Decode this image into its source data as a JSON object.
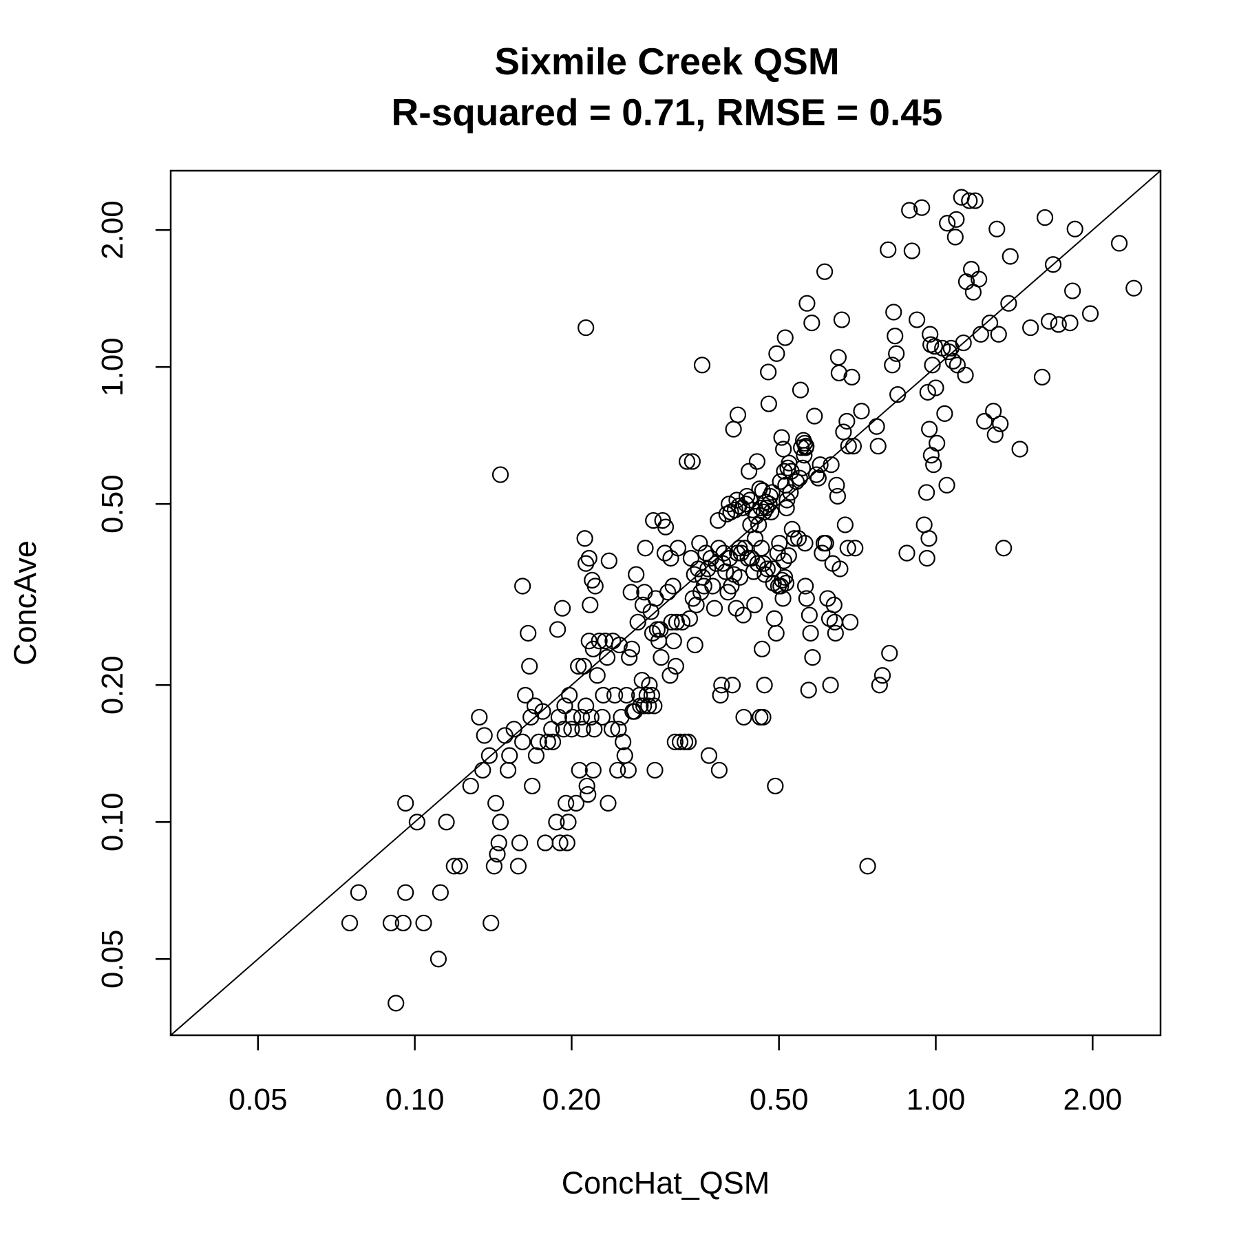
{
  "chart_data": {
    "type": "scatter",
    "title": "Sixmile Creek QSM",
    "subtitle": "R-squared = 0.71, RMSE = 0.45",
    "xlabel": "ConcHat_QSM",
    "ylabel": "ConcAve",
    "x_scale": "log",
    "y_scale": "log",
    "xlim": [
      0.034,
      2.7
    ],
    "ylim": [
      0.034,
      2.7
    ],
    "x_ticks": [
      "0.05",
      "0.10",
      "0.20",
      "0.50",
      "1.00",
      "2.00"
    ],
    "y_ticks": [
      "0.05",
      "0.10",
      "0.20",
      "0.50",
      "1.00",
      "2.00"
    ],
    "grid": false,
    "reference_line": "1:1",
    "marker": "open-circle",
    "points": [
      [
        0.075,
        0.06
      ],
      [
        0.078,
        0.07
      ],
      [
        0.09,
        0.06
      ],
      [
        0.095,
        0.06
      ],
      [
        0.096,
        0.07
      ],
      [
        0.096,
        0.11
      ],
      [
        0.092,
        0.04
      ],
      [
        0.101,
        0.1
      ],
      [
        0.104,
        0.06
      ],
      [
        0.111,
        0.05
      ],
      [
        0.112,
        0.07
      ],
      [
        0.115,
        0.1
      ],
      [
        0.119,
        0.08
      ],
      [
        0.122,
        0.08
      ],
      [
        0.128,
        0.12
      ],
      [
        0.133,
        0.17
      ],
      [
        0.135,
        0.13
      ],
      [
        0.136,
        0.155
      ],
      [
        0.139,
        0.14
      ],
      [
        0.14,
        0.06
      ],
      [
        0.142,
        0.08
      ],
      [
        0.143,
        0.11
      ],
      [
        0.144,
        0.085
      ],
      [
        0.145,
        0.09
      ],
      [
        0.146,
        0.1
      ],
      [
        0.146,
        0.58
      ],
      [
        0.149,
        0.155
      ],
      [
        0.151,
        0.13
      ],
      [
        0.152,
        0.14
      ],
      [
        0.155,
        0.16
      ],
      [
        0.158,
        0.08
      ],
      [
        0.159,
        0.09
      ],
      [
        0.161,
        0.15
      ],
      [
        0.161,
        0.33
      ],
      [
        0.163,
        0.19
      ],
      [
        0.165,
        0.26
      ],
      [
        0.166,
        0.22
      ],
      [
        0.167,
        0.17
      ],
      [
        0.168,
        0.12
      ],
      [
        0.17,
        0.18
      ],
      [
        0.171,
        0.14
      ],
      [
        0.173,
        0.15
      ],
      [
        0.176,
        0.175
      ],
      [
        0.178,
        0.09
      ],
      [
        0.18,
        0.15
      ],
      [
        0.183,
        0.16
      ],
      [
        0.184,
        0.15
      ],
      [
        0.187,
        0.1
      ],
      [
        0.188,
        0.265
      ],
      [
        0.189,
        0.17
      ],
      [
        0.19,
        0.09
      ],
      [
        0.192,
        0.295
      ],
      [
        0.193,
        0.16
      ],
      [
        0.194,
        0.18
      ],
      [
        0.195,
        0.11
      ],
      [
        0.196,
        0.09
      ],
      [
        0.197,
        0.1
      ],
      [
        0.198,
        0.19
      ],
      [
        0.2,
        0.16
      ],
      [
        0.201,
        0.17
      ],
      [
        0.204,
        0.11
      ],
      [
        0.206,
        0.22
      ],
      [
        0.207,
        0.13
      ],
      [
        0.209,
        0.17
      ],
      [
        0.21,
        0.16
      ],
      [
        0.211,
        0.22
      ],
      [
        0.212,
        0.42
      ],
      [
        0.213,
        1.22
      ],
      [
        0.213,
        0.18
      ],
      [
        0.213,
        0.37
      ],
      [
        0.214,
        0.12
      ],
      [
        0.215,
        0.115
      ],
      [
        0.216,
        0.25
      ],
      [
        0.216,
        0.38
      ],
      [
        0.217,
        0.3
      ],
      [
        0.218,
        0.17
      ],
      [
        0.219,
        0.34
      ],
      [
        0.22,
        0.24
      ],
      [
        0.22,
        0.13
      ],
      [
        0.221,
        0.16
      ],
      [
        0.222,
        0.33
      ],
      [
        0.224,
        0.21
      ],
      [
        0.226,
        0.25
      ],
      [
        0.229,
        0.17
      ],
      [
        0.23,
        0.19
      ],
      [
        0.232,
        0.25
      ],
      [
        0.234,
        0.23
      ],
      [
        0.235,
        0.11
      ],
      [
        0.236,
        0.375
      ],
      [
        0.239,
        0.16
      ],
      [
        0.24,
        0.25
      ],
      [
        0.242,
        0.19
      ],
      [
        0.245,
        0.13
      ],
      [
        0.246,
        0.16
      ],
      [
        0.247,
        0.245
      ],
      [
        0.249,
        0.17
      ],
      [
        0.251,
        0.15
      ],
      [
        0.253,
        0.14
      ],
      [
        0.255,
        0.19
      ],
      [
        0.257,
        0.13
      ],
      [
        0.258,
        0.23
      ],
      [
        0.26,
        0.32
      ],
      [
        0.261,
        0.24
      ],
      [
        0.262,
        0.175
      ],
      [
        0.264,
        0.175
      ],
      [
        0.266,
        0.35
      ],
      [
        0.268,
        0.275
      ],
      [
        0.27,
        0.19
      ],
      [
        0.271,
        0.18
      ],
      [
        0.273,
        0.205
      ],
      [
        0.274,
        0.3
      ],
      [
        0.275,
        0.18
      ],
      [
        0.276,
        0.32
      ],
      [
        0.277,
        0.4
      ],
      [
        0.279,
        0.19
      ],
      [
        0.281,
        0.18
      ],
      [
        0.282,
        0.2
      ],
      [
        0.284,
        0.29
      ],
      [
        0.285,
        0.19
      ],
      [
        0.286,
        0.26
      ],
      [
        0.287,
        0.46
      ],
      [
        0.288,
        0.18
      ],
      [
        0.289,
        0.13
      ],
      [
        0.29,
        0.31
      ],
      [
        0.292,
        0.265
      ],
      [
        0.294,
        0.25
      ],
      [
        0.296,
        0.265
      ],
      [
        0.297,
        0.23
      ],
      [
        0.299,
        0.46
      ],
      [
        0.302,
        0.39
      ],
      [
        0.303,
        0.445
      ],
      [
        0.306,
        0.32
      ],
      [
        0.309,
        0.21
      ],
      [
        0.31,
        0.38
      ],
      [
        0.311,
        0.275
      ],
      [
        0.313,
        0.33
      ],
      [
        0.314,
        0.25
      ],
      [
        0.316,
        0.15
      ],
      [
        0.317,
        0.22
      ],
      [
        0.318,
        0.275
      ],
      [
        0.32,
        0.4
      ],
      [
        0.323,
        0.15
      ],
      [
        0.326,
        0.275
      ],
      [
        0.33,
        0.15
      ],
      [
        0.333,
        0.62
      ],
      [
        0.335,
        0.15
      ],
      [
        0.337,
        0.28
      ],
      [
        0.339,
        0.38
      ],
      [
        0.341,
        0.62
      ],
      [
        0.342,
        0.31
      ],
      [
        0.344,
        0.35
      ],
      [
        0.345,
        0.245
      ],
      [
        0.347,
        0.3
      ],
      [
        0.35,
        0.36
      ],
      [
        0.352,
        0.41
      ],
      [
        0.354,
        0.32
      ],
      [
        0.356,
        1.01
      ],
      [
        0.357,
        0.345
      ],
      [
        0.359,
        0.33
      ],
      [
        0.362,
        0.39
      ],
      [
        0.365,
        0.36
      ],
      [
        0.367,
        0.14
      ],
      [
        0.37,
        0.38
      ],
      [
        0.373,
        0.33
      ],
      [
        0.376,
        0.295
      ],
      [
        0.379,
        0.37
      ],
      [
        0.382,
        0.46
      ],
      [
        0.383,
        0.4
      ],
      [
        0.384,
        0.13
      ],
      [
        0.386,
        0.19
      ],
      [
        0.388,
        0.2
      ],
      [
        0.39,
        0.37
      ],
      [
        0.392,
        0.39
      ],
      [
        0.395,
        0.355
      ],
      [
        0.397,
        0.475
      ],
      [
        0.399,
        0.32
      ],
      [
        0.401,
        0.5
      ],
      [
        0.402,
        0.38
      ],
      [
        0.404,
        0.48
      ],
      [
        0.405,
        0.33
      ],
      [
        0.407,
        0.2
      ],
      [
        0.409,
        0.73
      ],
      [
        0.41,
        0.35
      ],
      [
        0.412,
        0.485
      ],
      [
        0.414,
        0.295
      ],
      [
        0.415,
        0.51
      ],
      [
        0.416,
        0.39
      ],
      [
        0.417,
        0.785
      ],
      [
        0.419,
        0.495
      ],
      [
        0.42,
        0.4
      ],
      [
        0.421,
        0.345
      ],
      [
        0.423,
        0.39
      ],
      [
        0.425,
        0.49
      ],
      [
        0.427,
        0.285
      ],
      [
        0.428,
        0.17
      ],
      [
        0.43,
        0.4
      ],
      [
        0.432,
        0.5
      ],
      [
        0.434,
        0.52
      ],
      [
        0.436,
        0.38
      ],
      [
        0.438,
        0.59
      ],
      [
        0.44,
        0.51
      ],
      [
        0.441,
        0.45
      ],
      [
        0.443,
        0.38
      ],
      [
        0.445,
        0.485
      ],
      [
        0.447,
        0.355
      ],
      [
        0.449,
        0.3
      ],
      [
        0.45,
        0.42
      ],
      [
        0.452,
        0.47
      ],
      [
        0.454,
        0.62
      ],
      [
        0.455,
        0.37
      ],
      [
        0.457,
        0.45
      ],
      [
        0.459,
        0.54
      ],
      [
        0.46,
        0.17
      ],
      [
        0.462,
        0.49
      ],
      [
        0.463,
        0.4
      ],
      [
        0.464,
        0.24
      ],
      [
        0.465,
        0.535
      ],
      [
        0.466,
        0.17
      ],
      [
        0.467,
        0.37
      ],
      [
        0.468,
        0.48
      ],
      [
        0.469,
        0.2
      ],
      [
        0.47,
        0.35
      ],
      [
        0.472,
        0.505
      ],
      [
        0.473,
        0.49
      ],
      [
        0.475,
        0.36
      ],
      [
        0.477,
        0.975
      ],
      [
        0.478,
        0.83
      ],
      [
        0.479,
        0.5
      ],
      [
        0.481,
        0.52
      ],
      [
        0.483,
        0.48
      ],
      [
        0.485,
        0.53
      ],
      [
        0.487,
        0.36
      ],
      [
        0.488,
        0.335
      ],
      [
        0.49,
        0.28
      ],
      [
        0.492,
        0.12
      ],
      [
        0.494,
        0.26
      ],
      [
        0.495,
        1.07
      ],
      [
        0.497,
        0.39
      ],
      [
        0.499,
        0.33
      ],
      [
        0.501,
        0.41
      ],
      [
        0.503,
        0.56
      ],
      [
        0.504,
        0.33
      ],
      [
        0.506,
        0.7
      ],
      [
        0.507,
        0.34
      ],
      [
        0.509,
        0.31
      ],
      [
        0.51,
        0.66
      ],
      [
        0.511,
        0.375
      ],
      [
        0.512,
        0.59
      ],
      [
        0.513,
        0.345
      ],
      [
        0.514,
        1.16
      ],
      [
        0.515,
        0.55
      ],
      [
        0.516,
        0.335
      ],
      [
        0.517,
        0.49
      ],
      [
        0.518,
        0.51
      ],
      [
        0.52,
        0.6
      ],
      [
        0.522,
        0.385
      ],
      [
        0.523,
        0.615
      ],
      [
        0.526,
        0.53
      ],
      [
        0.528,
        0.59
      ],
      [
        0.53,
        0.44
      ],
      [
        0.535,
        0.42
      ],
      [
        0.54,
        0.56
      ],
      [
        0.545,
        0.42
      ],
      [
        0.548,
        0.57
      ],
      [
        0.55,
        0.89
      ],
      [
        0.552,
        0.665
      ],
      [
        0.555,
        0.6
      ],
      [
        0.557,
        0.69
      ],
      [
        0.559,
        0.64
      ],
      [
        0.56,
        0.68
      ],
      [
        0.561,
        0.41
      ],
      [
        0.562,
        0.33
      ],
      [
        0.563,
        0.665
      ],
      [
        0.564,
        0.67
      ],
      [
        0.565,
        0.31
      ],
      [
        0.566,
        1.38
      ],
      [
        0.57,
        0.195
      ],
      [
        0.572,
        0.285
      ],
      [
        0.575,
        0.26
      ],
      [
        0.578,
        1.25
      ],
      [
        0.58,
        0.23
      ],
      [
        0.585,
        0.78
      ],
      [
        0.59,
        0.58
      ],
      [
        0.595,
        0.57
      ],
      [
        0.6,
        0.61
      ],
      [
        0.605,
        0.39
      ],
      [
        0.61,
        0.41
      ],
      [
        0.612,
        1.62
      ],
      [
        0.615,
        0.41
      ],
      [
        0.62,
        0.31
      ],
      [
        0.625,
        0.28
      ],
      [
        0.628,
        0.2
      ],
      [
        0.63,
        0.61
      ],
      [
        0.634,
        0.37
      ],
      [
        0.638,
        0.3
      ],
      [
        0.64,
        0.275
      ],
      [
        0.642,
        0.26
      ],
      [
        0.645,
        0.55
      ],
      [
        0.648,
        0.52
      ],
      [
        0.65,
        1.05
      ],
      [
        0.652,
        0.97
      ],
      [
        0.655,
        0.36
      ],
      [
        0.66,
        1.27
      ],
      [
        0.665,
        0.72
      ],
      [
        0.67,
        0.45
      ],
      [
        0.675,
        0.76
      ],
      [
        0.678,
        0.4
      ],
      [
        0.68,
        0.67
      ],
      [
        0.685,
        0.275
      ],
      [
        0.69,
        0.95
      ],
      [
        0.695,
        0.67
      ],
      [
        0.7,
        0.4
      ],
      [
        0.72,
        0.8
      ],
      [
        0.74,
        0.08
      ],
      [
        0.77,
        0.74
      ],
      [
        0.775,
        0.67
      ],
      [
        0.78,
        0.2
      ],
      [
        0.79,
        0.21
      ],
      [
        0.81,
        1.81
      ],
      [
        0.815,
        0.235
      ],
      [
        0.825,
        1.01
      ],
      [
        0.83,
        1.32
      ],
      [
        0.835,
        1.17
      ],
      [
        0.84,
        1.07
      ],
      [
        0.845,
        0.87
      ],
      [
        0.88,
        0.39
      ],
      [
        0.89,
        2.21
      ],
      [
        0.9,
        1.8
      ],
      [
        0.92,
        1.27
      ],
      [
        0.94,
        2.24
      ],
      [
        0.95,
        0.45
      ],
      [
        0.96,
        0.53
      ],
      [
        0.962,
        0.38
      ],
      [
        0.965,
        0.88
      ],
      [
        0.97,
        0.42
      ],
      [
        0.972,
        0.73
      ],
      [
        0.975,
        1.18
      ],
      [
        0.978,
        1.12
      ],
      [
        0.98,
        0.64
      ],
      [
        0.985,
        1.01
      ],
      [
        0.99,
        0.61
      ],
      [
        0.995,
        1.11
      ],
      [
        1.0,
        0.9
      ],
      [
        1.005,
        0.68
      ],
      [
        1.03,
        1.1
      ],
      [
        1.04,
        0.79
      ],
      [
        1.05,
        0.55
      ],
      [
        1.052,
        2.07
      ],
      [
        1.06,
        1.08
      ],
      [
        1.07,
        1.1
      ],
      [
        1.08,
        1.03
      ],
      [
        1.09,
        1.93
      ],
      [
        1.095,
        2.11
      ],
      [
        1.1,
        1.01
      ],
      [
        1.12,
        2.36
      ],
      [
        1.13,
        1.13
      ],
      [
        1.14,
        0.96
      ],
      [
        1.145,
        1.54
      ],
      [
        1.16,
        2.32
      ],
      [
        1.17,
        1.64
      ],
      [
        1.18,
        1.46
      ],
      [
        1.19,
        2.32
      ],
      [
        1.21,
        1.56
      ],
      [
        1.22,
        1.18
      ],
      [
        1.24,
        0.76
      ],
      [
        1.27,
        1.25
      ],
      [
        1.29,
        0.8
      ],
      [
        1.3,
        0.71
      ],
      [
        1.31,
        2.01
      ],
      [
        1.32,
        1.18
      ],
      [
        1.33,
        0.75
      ],
      [
        1.35,
        0.4
      ],
      [
        1.38,
        1.38
      ],
      [
        1.39,
        1.75
      ],
      [
        1.45,
        0.66
      ],
      [
        1.52,
        1.22
      ],
      [
        1.6,
        0.95
      ],
      [
        1.62,
        2.13
      ],
      [
        1.65,
        1.26
      ],
      [
        1.68,
        1.68
      ],
      [
        1.72,
        1.24
      ],
      [
        1.81,
        1.25
      ],
      [
        1.83,
        1.47
      ],
      [
        1.85,
        2.01
      ],
      [
        1.98,
        1.31
      ],
      [
        2.25,
        1.87
      ],
      [
        2.4,
        1.49
      ]
    ]
  }
}
